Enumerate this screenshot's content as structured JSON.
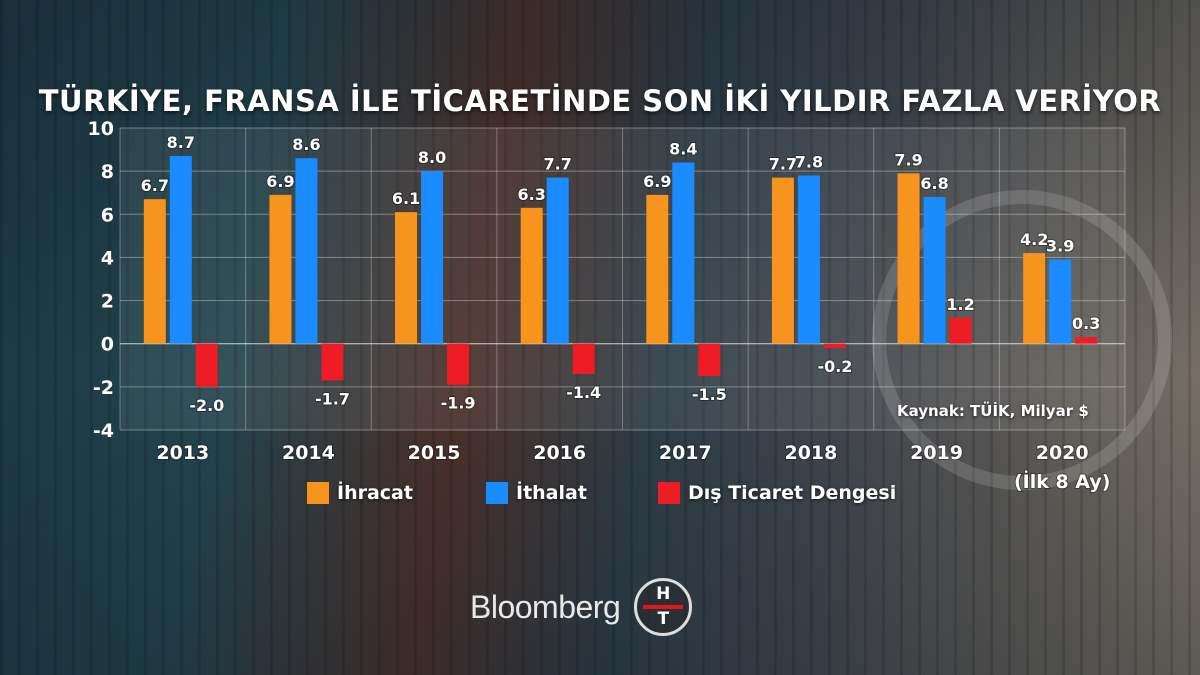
{
  "title": "TÜRKİYE, FRANSA İLE TİCARETİNDE SON İKİ YILDIR FAZLA VERİYOR",
  "source": "Kaynak: TÜİK, Milyar $",
  "brand": {
    "name": "Bloomberg",
    "logo_top": "H",
    "logo_bottom": "T"
  },
  "colors": {
    "exports": "#f7941d",
    "imports": "#1a8cff",
    "balance": "#ee1c24"
  },
  "chart_data": {
    "type": "bar",
    "title": "TÜRKİYE, FRANSA İLE TİCARETİNDE SON İKİ YILDIR FAZLA VERİYOR",
    "categories": [
      "2013",
      "2014",
      "2015",
      "2016",
      "2017",
      "2018",
      "2019",
      "2020"
    ],
    "category_sublabels": [
      "",
      "",
      "",
      "",
      "",
      "",
      "",
      "(İlk 8 Ay)"
    ],
    "ylim": [
      -4,
      10
    ],
    "yticks": [
      "10",
      "8",
      "6",
      "4",
      "2",
      "0",
      "-2",
      "-4"
    ],
    "ytick_values": [
      10,
      8,
      6,
      4,
      2,
      0,
      -2,
      -4
    ],
    "series": [
      {
        "name": "İhracat",
        "values": [
          6.7,
          6.9,
          6.1,
          6.3,
          6.9,
          7.7,
          7.9,
          4.2
        ],
        "labels": [
          "6.7",
          "6.9",
          "6.1",
          "6.3",
          "6.9",
          "7.7",
          "7.9",
          "4.2"
        ]
      },
      {
        "name": "İthalat",
        "values": [
          8.7,
          8.6,
          8.0,
          7.7,
          8.4,
          7.8,
          6.8,
          3.9
        ],
        "labels": [
          "8.7",
          "8.6",
          "8.0",
          "7.7",
          "8.4",
          "7.8",
          "6.8",
          "3.9"
        ]
      },
      {
        "name": "Dış Ticaret Dengesi",
        "values": [
          -2.0,
          -1.7,
          -1.9,
          -1.4,
          -1.5,
          -0.2,
          1.2,
          0.3
        ],
        "labels": [
          "-2.0",
          "-1.7",
          "-1.9",
          "-1.4",
          "-1.5",
          "-0.2",
          "1.2",
          "0.3"
        ]
      }
    ],
    "legend_position": "bottom",
    "grid": true
  }
}
